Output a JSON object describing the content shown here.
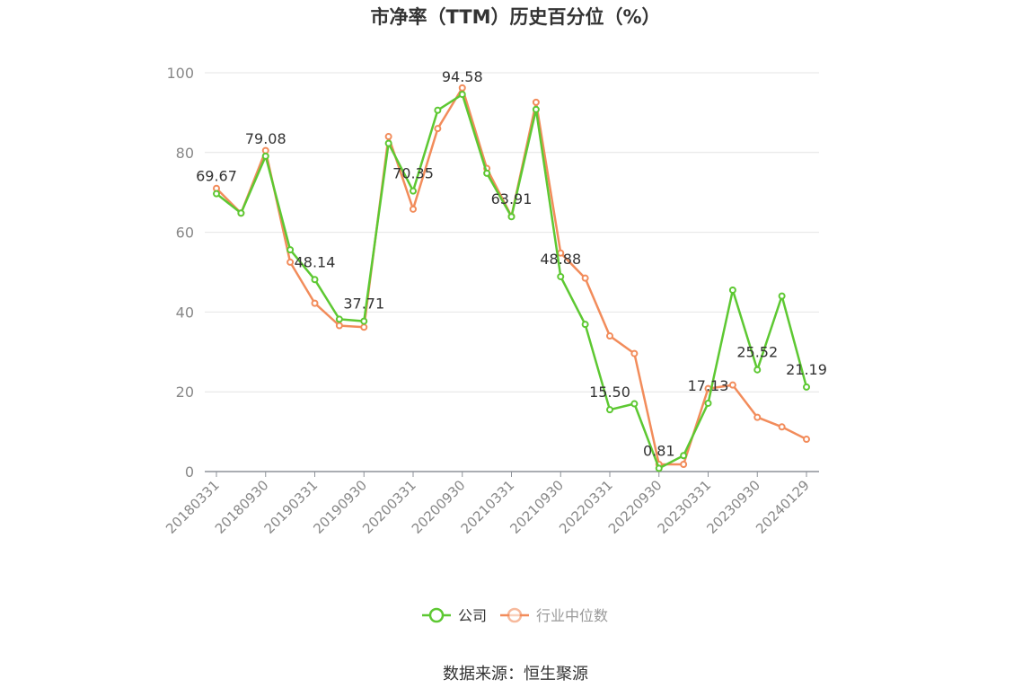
{
  "chart_data": {
    "type": "line",
    "title": "市净率（TTM）历史百分位（%）",
    "xlabel": "",
    "ylabel": "",
    "ylim": [
      0,
      100
    ],
    "yticks": [
      0,
      20,
      40,
      60,
      80,
      100
    ],
    "grid": true,
    "legend_position": "bottom-center",
    "categories": [
      "20180331",
      "20180630",
      "20180930",
      "20181231",
      "20190331",
      "20190630",
      "20190930",
      "20191231",
      "20200331",
      "20200630",
      "20200930",
      "20201231",
      "20210331",
      "20210630",
      "20210930",
      "20211231",
      "20220331",
      "20220630",
      "20220930",
      "20221231",
      "20230331",
      "20230630",
      "20230930",
      "20231231",
      "20240129"
    ],
    "xtick_labels": [
      "20180331",
      "20180930",
      "20190331",
      "20190930",
      "20200331",
      "20200930",
      "20210331",
      "20210930",
      "20220331",
      "20220930",
      "20230331",
      "20230930",
      "20240129"
    ],
    "series": [
      {
        "name": "公司",
        "color": "#5dc832",
        "values": [
          69.67,
          64.8,
          79.08,
          55.6,
          48.14,
          38.2,
          37.71,
          82.3,
          70.35,
          90.6,
          94.58,
          74.8,
          63.91,
          90.8,
          48.88,
          36.9,
          15.5,
          17.0,
          0.81,
          4.0,
          17.13,
          45.5,
          25.52,
          44.0,
          21.19
        ],
        "data_labels": [
          "69.67",
          "",
          "79.08",
          "",
          "48.14",
          "",
          "37.71",
          "",
          "70.35",
          "",
          "94.58",
          "",
          "63.91",
          "",
          "48.88",
          "",
          "15.50",
          "",
          "0.81",
          "",
          "17.13",
          "",
          "25.52",
          "",
          "21.19"
        ]
      },
      {
        "name": "行业中位数",
        "color": "#f28c5b",
        "values": [
          71.0,
          64.8,
          80.5,
          52.5,
          42.2,
          36.6,
          36.2,
          84.0,
          65.8,
          86.0,
          96.2,
          76.0,
          64.0,
          92.6,
          54.8,
          48.5,
          34.0,
          29.6,
          1.8,
          1.8,
          20.8,
          21.7,
          13.6,
          11.2,
          8.1
        ]
      }
    ]
  },
  "legend": {
    "items": [
      "公司",
      "行业中位数"
    ]
  },
  "source_text": "数据来源：恒生聚源"
}
